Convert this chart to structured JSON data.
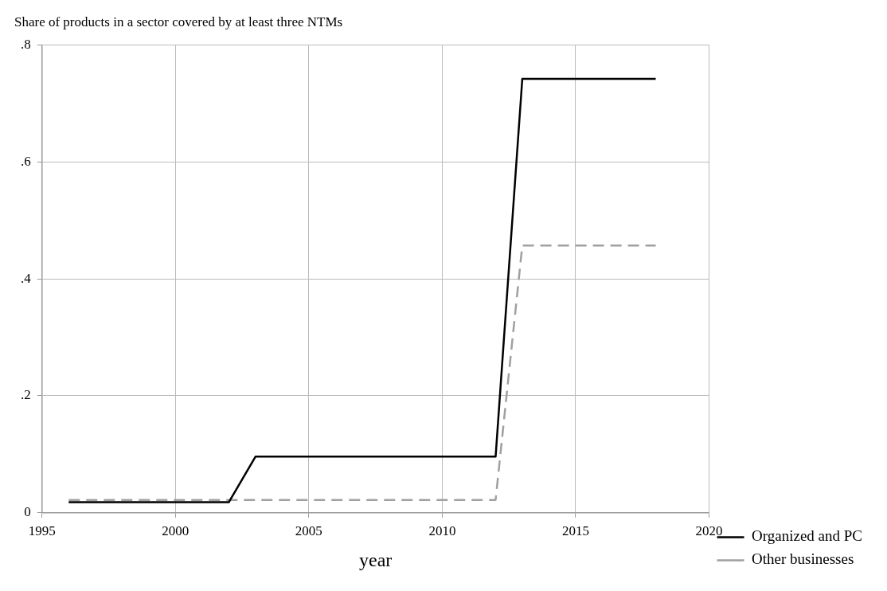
{
  "chart_data": {
    "type": "line",
    "title": "Share of products in a sector covered by at least three NTMs",
    "xlabel": "year",
    "xlim": [
      1995,
      2020
    ],
    "xticks": [
      1995,
      2000,
      2005,
      2010,
      2015,
      2020
    ],
    "ylim": [
      0,
      0.8
    ],
    "yticks": [
      {
        "value": 0,
        "label": "0"
      },
      {
        "value": 0.2,
        "label": ".2"
      },
      {
        "value": 0.4,
        "label": ".4"
      },
      {
        "value": 0.6,
        "label": ".6"
      },
      {
        "value": 0.8,
        "label": ".8"
      }
    ],
    "grid": true,
    "legend": "bottom right",
    "marker": "none",
    "series": [
      {
        "name": "Organized and PC",
        "color": "#000000",
        "line_style": "solid",
        "x": [
          1996,
          2002,
          2003,
          2012,
          2013,
          2018
        ],
        "values": [
          0.018,
          0.018,
          0.096,
          0.096,
          0.742,
          0.742
        ]
      },
      {
        "name": "Other businesses",
        "color": "#a0a0a0",
        "line_style": "dashed",
        "x": [
          1996,
          2012,
          2013,
          2018
        ],
        "values": [
          0.022,
          0.022,
          0.457,
          0.457
        ]
      }
    ]
  }
}
